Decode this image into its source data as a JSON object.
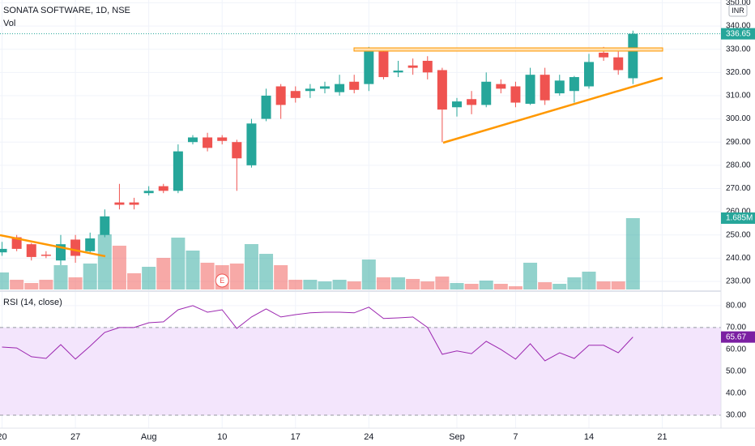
{
  "chart_data": {
    "type": "candlestick",
    "title": "SONATA SOFTWARE, 1D, NSE",
    "currency": "INR",
    "up_color": "#26a69a",
    "down_color": "#ef5350",
    "open": [
      242.5,
      249,
      246,
      241.5,
      239,
      248,
      243,
      250,
      264,
      264,
      268,
      271,
      269,
      290,
      292,
      292,
      290,
      280,
      300,
      314,
      312,
      312,
      313,
      311.5,
      316,
      315,
      329,
      320,
      323,
      325,
      321,
      305,
      308.5,
      306,
      315,
      314,
      306.5,
      319,
      311,
      312,
      314,
      328.5,
      326.5,
      317.5
    ],
    "high": [
      247,
      250,
      246.5,
      243,
      250,
      250,
      251,
      261,
      272,
      266,
      271,
      272,
      289,
      293,
      294,
      293,
      291,
      300,
      313,
      315,
      314,
      315,
      316,
      319,
      319,
      331,
      330,
      325,
      326,
      327,
      322,
      309,
      312,
      320,
      317,
      316,
      322,
      322,
      319,
      318.5,
      328,
      331,
      329,
      338
    ],
    "low": [
      241,
      243,
      239,
      240,
      237,
      238,
      242,
      249,
      261,
      261,
      267,
      268,
      268,
      289,
      286,
      289,
      269,
      279,
      299,
      300,
      307,
      309,
      311,
      310,
      311,
      312,
      317,
      318,
      319,
      317,
      290,
      301,
      302,
      305,
      311,
      305,
      306,
      306,
      310,
      307,
      313,
      325,
      319,
      315
    ],
    "close": [
      244,
      244,
      240.5,
      241,
      246,
      241,
      248.5,
      258,
      263,
      263,
      269,
      269,
      286,
      292,
      287.5,
      290.5,
      283,
      298,
      310,
      306,
      309,
      313,
      314,
      315,
      312.5,
      329,
      318,
      320.8,
      322,
      320,
      304,
      307.5,
      306,
      316,
      313,
      307,
      319,
      308,
      316.5,
      318,
      324.5,
      326.5,
      321,
      336.65
    ],
    "ylim": [
      226.5,
      351.2
    ],
    "yticks": [
      {
        "value": 230,
        "label": "230.00"
      },
      {
        "value": 240,
        "label": "240.00"
      },
      {
        "value": 250,
        "label": "250.00"
      },
      {
        "value": 260,
        "label": "260.00"
      },
      {
        "value": 270,
        "label": "270.00"
      },
      {
        "value": 280,
        "label": "280.00"
      },
      {
        "value": 290,
        "label": "290.00"
      },
      {
        "value": 300,
        "label": "300.00"
      },
      {
        "value": 310,
        "label": "310.00"
      },
      {
        "value": 320,
        "label": "320.00"
      },
      {
        "value": 330,
        "label": "330.00"
      },
      {
        "value": 340,
        "label": "340.00"
      },
      {
        "value": 350,
        "label": "350.00"
      }
    ],
    "xlim": [
      -0.14,
      49
    ],
    "xticks": [
      {
        "value": 0,
        "label": "20"
      },
      {
        "value": 5,
        "label": "27"
      },
      {
        "value": 10,
        "label": "Aug"
      },
      {
        "value": 15,
        "label": "10"
      },
      {
        "value": 20,
        "label": "17"
      },
      {
        "value": 25,
        "label": "24"
      },
      {
        "value": 31,
        "label": "Sep"
      },
      {
        "value": 35,
        "label": "7"
      },
      {
        "value": 40,
        "label": "14"
      },
      {
        "value": 45,
        "label": "21"
      }
    ],
    "grid": true,
    "volume": {
      "name": "Vol",
      "values": [
        0.402,
        0.23,
        0.153,
        0.23,
        0.574,
        0.287,
        0.613,
        1.302,
        1.034,
        0.383,
        0.536,
        0.747,
        1.225,
        0.919,
        0.632,
        0.574,
        0.613,
        1.072,
        0.842,
        0.574,
        0.23,
        0.23,
        0.191,
        0.23,
        0.191,
        0.708,
        0.287,
        0.287,
        0.249,
        0.191,
        0.306,
        0.153,
        0.134,
        0.211,
        0.134,
        0.077,
        0.632,
        0.172,
        0.134,
        0.287,
        0.421,
        0.191,
        0.191,
        1.685
      ],
      "value_labels": [
        null,
        null,
        null,
        null,
        null,
        null,
        null,
        null,
        null,
        null,
        null,
        null,
        null,
        null,
        null,
        null,
        null,
        null,
        null,
        null,
        null,
        null,
        null,
        null,
        null,
        null,
        null,
        null,
        null,
        null,
        null,
        null,
        null,
        null,
        null,
        null,
        null,
        null,
        null,
        null,
        null,
        null,
        null,
        "1.685M"
      ]
    },
    "earnings": {
      "label": "E",
      "at": 15
    },
    "rsi": {
      "name": "RSI (14, close)",
      "color": "#9c27b0",
      "band_color": "#f3e5fc",
      "values": [
        61.1,
        60.7,
        56.7,
        55.9,
        62.2,
        55.6,
        61.5,
        67.8,
        70.0,
        70.0,
        72.2,
        72.6,
        78.1,
        80.0,
        77.0,
        78.1,
        69.6,
        74.8,
        78.5,
        74.8,
        75.9,
        76.7,
        77.0,
        77.0,
        76.7,
        79.3,
        74.1,
        74.4,
        74.8,
        70.0,
        57.8,
        59.3,
        58.1,
        63.7,
        60.0,
        55.6,
        62.6,
        54.8,
        58.5,
        55.9,
        61.9,
        61.9,
        58.5,
        65.67
      ],
      "ylim": [
        25.2,
        84.4
      ],
      "band": [
        30,
        70
      ],
      "yticks": [
        {
          "value": 30,
          "label": "30.00"
        },
        {
          "value": 40,
          "label": "40.00"
        },
        {
          "value": 50,
          "label": "50.00"
        },
        {
          "value": 60,
          "label": "60.00"
        },
        {
          "value": 70,
          "label": "70.00"
        },
        {
          "value": 80,
          "label": "80.00"
        }
      ]
    }
  }
}
